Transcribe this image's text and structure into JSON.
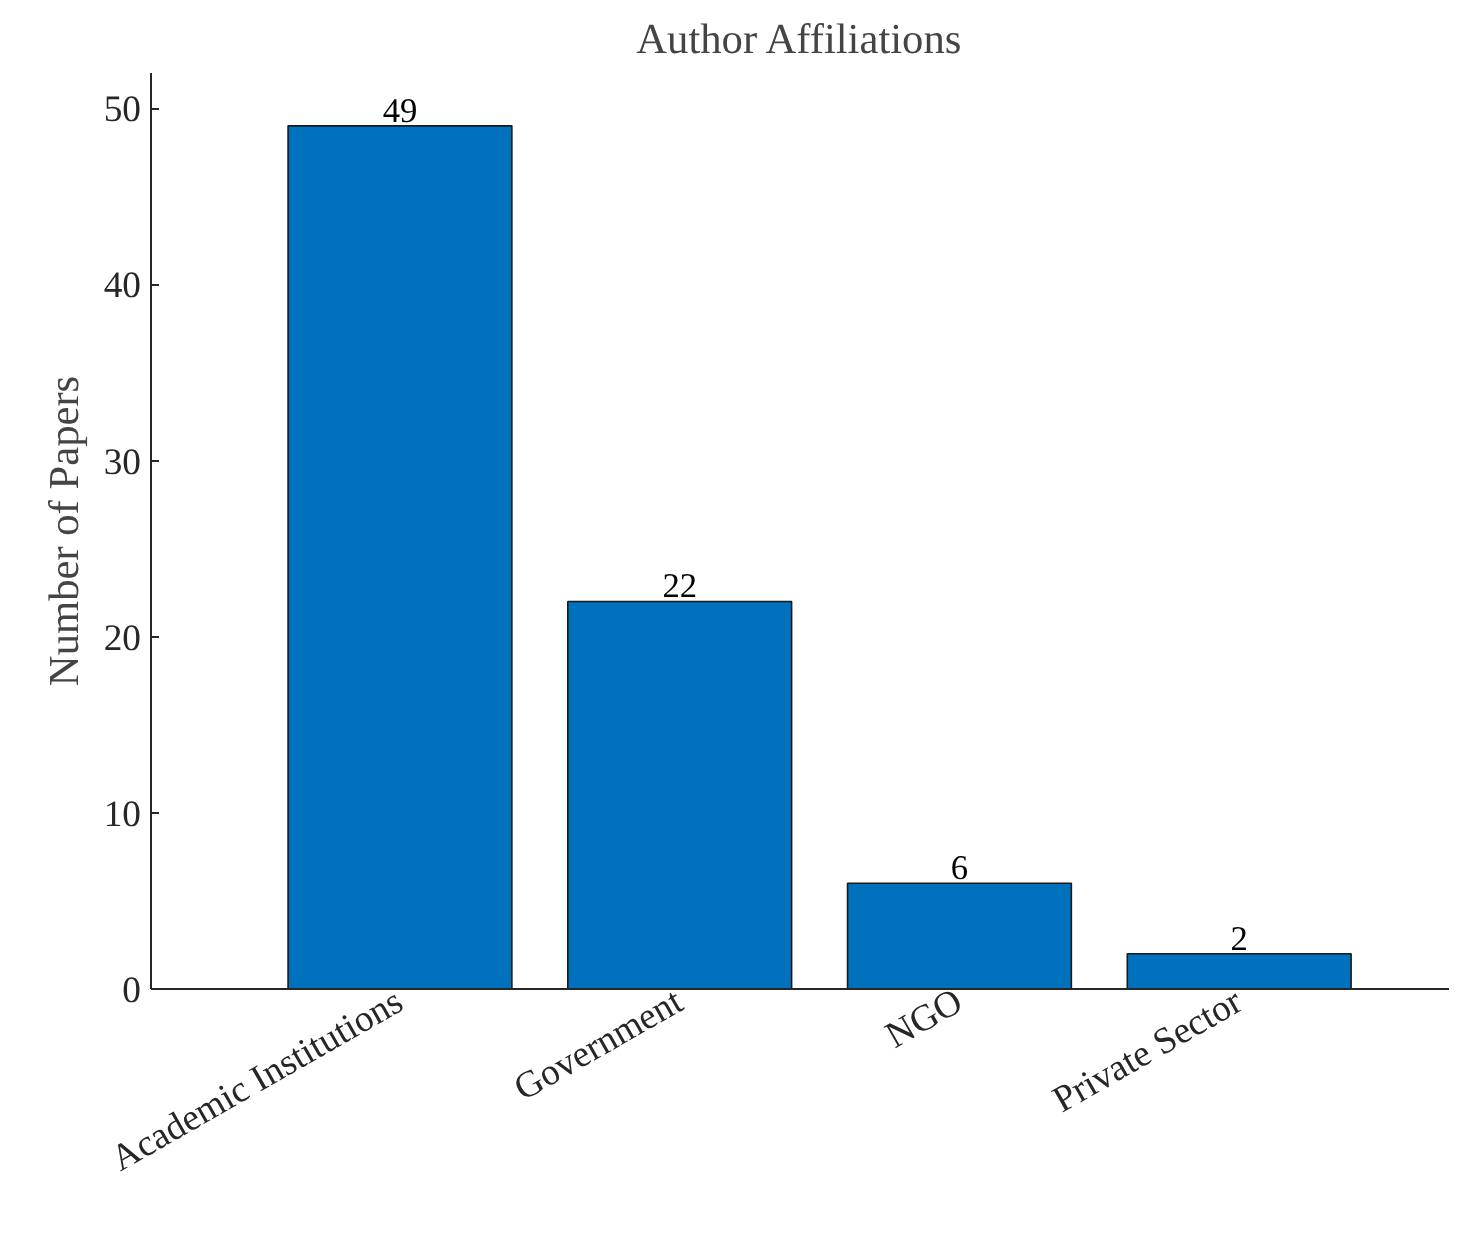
{
  "chart_data": {
    "type": "bar",
    "title": "Author Affiliations",
    "ylabel": "Number of Papers",
    "categories": [
      "Academic Institutions",
      "Government",
      "NGO",
      "Private Sector"
    ],
    "values": [
      49,
      22,
      6,
      2
    ],
    "color": "#0072bd",
    "ylim": [
      0,
      52
    ],
    "yticks": [
      0,
      10,
      20,
      30,
      40,
      50
    ],
    "grid": false,
    "data_labels": true
  }
}
